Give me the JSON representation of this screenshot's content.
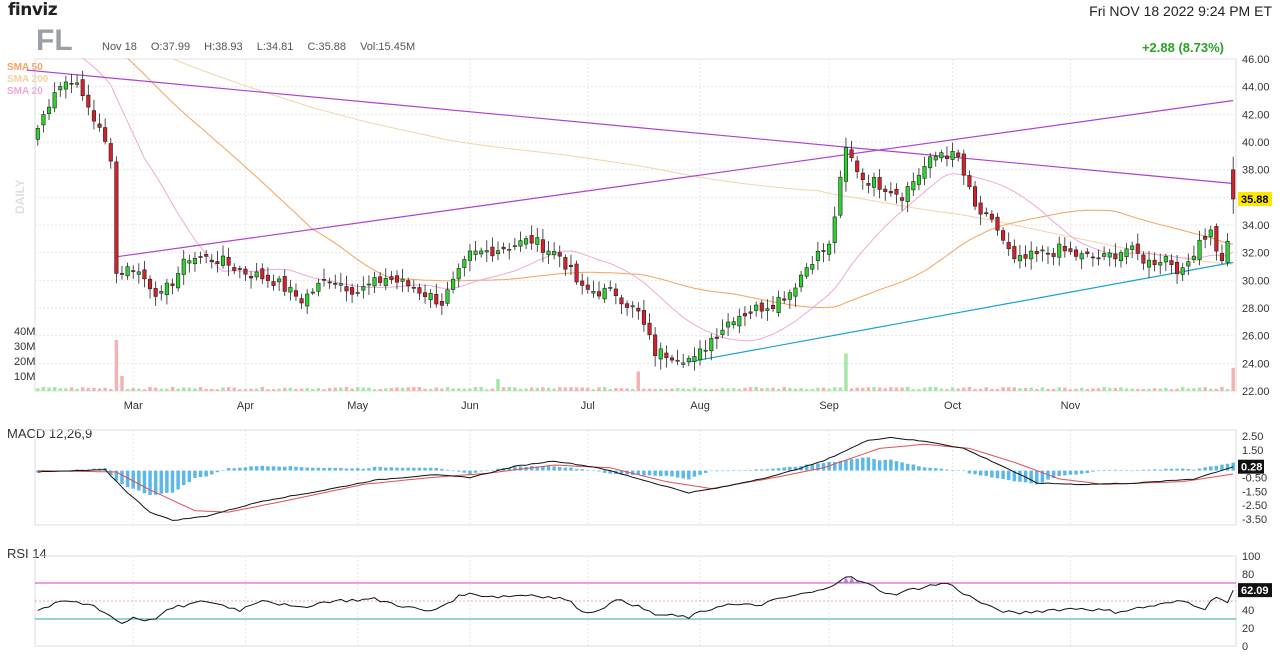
{
  "header": {
    "logo": "finviz",
    "datetime": "Fri NOV 18 2022 9:24 PM ET",
    "ticker": "FL",
    "date": "Nov 18",
    "open": "O:37.99",
    "high": "H:38.93",
    "low": "L:34.81",
    "close": "C:35.88",
    "volume": "Vol:15.45M",
    "change": "+2.88 (8.73%)"
  },
  "legend": {
    "sma50": {
      "label": "SMA 50",
      "color": "#f5a25d"
    },
    "sma200": {
      "label": "SMA 200",
      "color": "#f3d3a6"
    },
    "sma20": {
      "label": "SMA 20",
      "color": "#f0a8d8"
    }
  },
  "daily_label": "DAILY",
  "panels": {
    "macd": "MACD 12,26,9",
    "rsi": "RSI 14"
  },
  "colors": {
    "up": "#2dd32d",
    "down": "#d6202a",
    "trendline_purple": "#b040d0",
    "trendline_blue": "#1aa0d8",
    "macd_hist": "#5bb8e8",
    "macd_signal": "#e05050",
    "rsi_band": "#cc44cc",
    "rsi_low": "#2aa8a8",
    "price_tag": "#ffe800"
  },
  "chart_data": [
    {
      "type": "candlestick",
      "title": "FL",
      "x_labels": [
        "Mar",
        "Apr",
        "May",
        "Jun",
        "Jul",
        "Aug",
        "Sep",
        "Oct",
        "Nov"
      ],
      "y_ticks": [
        22,
        24,
        26,
        28,
        30,
        32,
        34,
        36,
        38,
        40,
        42,
        44,
        46
      ],
      "ylim": [
        22,
        46
      ],
      "last_price": "35.88",
      "volume_ticks": [
        "10M",
        "20M",
        "30M",
        "40M"
      ],
      "anchors": [
        {
          "i": 0,
          "c": 41.0
        },
        {
          "i": 3,
          "c": 43.8
        },
        {
          "i": 6,
          "c": 44.6
        },
        {
          "i": 9,
          "c": 42.6
        },
        {
          "i": 13,
          "c": 39.0
        },
        {
          "i": 14,
          "c": 30.5
        },
        {
          "i": 17,
          "c": 31.0
        },
        {
          "i": 22,
          "c": 28.8
        },
        {
          "i": 27,
          "c": 31.7
        },
        {
          "i": 32,
          "c": 31.5
        },
        {
          "i": 37,
          "c": 30.6
        },
        {
          "i": 42,
          "c": 30.0
        },
        {
          "i": 47,
          "c": 28.6
        },
        {
          "i": 52,
          "c": 30.2
        },
        {
          "i": 57,
          "c": 29.2
        },
        {
          "i": 62,
          "c": 30.2
        },
        {
          "i": 67,
          "c": 29.5
        },
        {
          "i": 72,
          "c": 28.4
        },
        {
          "i": 77,
          "c": 31.8
        },
        {
          "i": 82,
          "c": 32.3
        },
        {
          "i": 88,
          "c": 32.9
        },
        {
          "i": 93,
          "c": 31.8
        },
        {
          "i": 97,
          "c": 29.3
        },
        {
          "i": 103,
          "c": 29.1
        },
        {
          "i": 107,
          "c": 27.6
        },
        {
          "i": 110,
          "c": 24.8
        },
        {
          "i": 114,
          "c": 24.6
        },
        {
          "i": 117,
          "c": 24.2
        },
        {
          "i": 120,
          "c": 25.8
        },
        {
          "i": 124,
          "c": 27.4
        },
        {
          "i": 127,
          "c": 27.8
        },
        {
          "i": 131,
          "c": 28.4
        },
        {
          "i": 134,
          "c": 29.2
        },
        {
          "i": 138,
          "c": 31.6
        },
        {
          "i": 141,
          "c": 32.4
        },
        {
          "i": 144,
          "c": 39.4
        },
        {
          "i": 147,
          "c": 37.4
        },
        {
          "i": 151,
          "c": 36.8
        },
        {
          "i": 154,
          "c": 36.2
        },
        {
          "i": 158,
          "c": 38.2
        },
        {
          "i": 161,
          "c": 39.3
        },
        {
          "i": 164,
          "c": 38.8
        },
        {
          "i": 167,
          "c": 35.2
        },
        {
          "i": 171,
          "c": 33.7
        },
        {
          "i": 174,
          "c": 31.3
        },
        {
          "i": 178,
          "c": 31.8
        },
        {
          "i": 182,
          "c": 32.2
        },
        {
          "i": 186,
          "c": 31.7
        },
        {
          "i": 190,
          "c": 31.6
        },
        {
          "i": 194,
          "c": 32.3
        },
        {
          "i": 198,
          "c": 31.3
        },
        {
          "i": 201,
          "c": 31.7
        },
        {
          "i": 204,
          "c": 30.5
        },
        {
          "i": 207,
          "c": 33.0
        },
        {
          "i": 209,
          "c": 33.5
        },
        {
          "i": 211,
          "c": 31.2
        },
        {
          "i": 212,
          "c": 33.0
        },
        {
          "i": 213,
          "c": 35.88
        }
      ],
      "trendlines": [
        {
          "from": {
            "i": -2,
            "price": 45.2
          },
          "to": {
            "i": 213,
            "price": 37.0
          }
        },
        {
          "from": {
            "i": 14,
            "price": 31.7
          },
          "to": {
            "i": 213,
            "price": 43.0
          }
        },
        {
          "from": {
            "i": 116,
            "price": 24.1
          },
          "to": {
            "i": 213,
            "price": 31.3
          }
        }
      ]
    },
    {
      "type": "line",
      "title": "MACD 12,26,9",
      "y_ticks": [
        "2.50",
        "1.50",
        "0.50",
        "-0.50",
        "-1.50",
        "-2.50",
        "-3.50"
      ],
      "last_value": "0.28",
      "macd_anchors": [
        {
          "i": 0,
          "v": -0.1
        },
        {
          "i": 12,
          "v": 0.05
        },
        {
          "i": 16,
          "v": -1.6
        },
        {
          "i": 20,
          "v": -3.0
        },
        {
          "i": 24,
          "v": -3.6
        },
        {
          "i": 30,
          "v": -3.3
        },
        {
          "i": 40,
          "v": -2.2
        },
        {
          "i": 50,
          "v": -1.5
        },
        {
          "i": 60,
          "v": -0.7
        },
        {
          "i": 70,
          "v": -0.3
        },
        {
          "i": 77,
          "v": -0.5
        },
        {
          "i": 85,
          "v": 0.3
        },
        {
          "i": 92,
          "v": 0.7
        },
        {
          "i": 100,
          "v": 0.2
        },
        {
          "i": 108,
          "v": -0.7
        },
        {
          "i": 116,
          "v": -1.6
        },
        {
          "i": 122,
          "v": -1.2
        },
        {
          "i": 132,
          "v": -0.3
        },
        {
          "i": 140,
          "v": 0.7
        },
        {
          "i": 148,
          "v": 2.2
        },
        {
          "i": 152,
          "v": 2.4
        },
        {
          "i": 160,
          "v": 2.0
        },
        {
          "i": 165,
          "v": 1.6
        },
        {
          "i": 172,
          "v": 0.3
        },
        {
          "i": 178,
          "v": -0.9
        },
        {
          "i": 186,
          "v": -1.0
        },
        {
          "i": 196,
          "v": -0.9
        },
        {
          "i": 206,
          "v": -0.6
        },
        {
          "i": 213,
          "v": 0.28
        }
      ],
      "signal_anchors": [
        {
          "i": 0,
          "v": 0.0
        },
        {
          "i": 14,
          "v": -0.1
        },
        {
          "i": 20,
          "v": -1.4
        },
        {
          "i": 28,
          "v": -2.9
        },
        {
          "i": 34,
          "v": -3.0
        },
        {
          "i": 44,
          "v": -2.2
        },
        {
          "i": 58,
          "v": -1.0
        },
        {
          "i": 70,
          "v": -0.5
        },
        {
          "i": 80,
          "v": -0.2
        },
        {
          "i": 92,
          "v": 0.4
        },
        {
          "i": 102,
          "v": 0.2
        },
        {
          "i": 112,
          "v": -0.8
        },
        {
          "i": 120,
          "v": -1.3
        },
        {
          "i": 130,
          "v": -0.6
        },
        {
          "i": 140,
          "v": 0.2
        },
        {
          "i": 150,
          "v": 1.6
        },
        {
          "i": 158,
          "v": 1.9
        },
        {
          "i": 166,
          "v": 1.6
        },
        {
          "i": 174,
          "v": 0.6
        },
        {
          "i": 182,
          "v": -0.6
        },
        {
          "i": 190,
          "v": -1.0
        },
        {
          "i": 204,
          "v": -0.8
        },
        {
          "i": 213,
          "v": -0.25
        }
      ]
    },
    {
      "type": "line",
      "title": "RSI 14",
      "y_ticks": [
        "100",
        "80",
        "60",
        "40",
        "20",
        "0"
      ],
      "bands": [
        70,
        30
      ],
      "last_value": "62.09",
      "rsi_anchors": [
        {
          "i": 0,
          "v": 40
        },
        {
          "i": 5,
          "v": 50
        },
        {
          "i": 10,
          "v": 45
        },
        {
          "i": 13,
          "v": 33
        },
        {
          "i": 15,
          "v": 25
        },
        {
          "i": 17,
          "v": 32
        },
        {
          "i": 20,
          "v": 28
        },
        {
          "i": 24,
          "v": 42
        },
        {
          "i": 30,
          "v": 50
        },
        {
          "i": 36,
          "v": 40
        },
        {
          "i": 40,
          "v": 52
        },
        {
          "i": 46,
          "v": 42
        },
        {
          "i": 52,
          "v": 50
        },
        {
          "i": 60,
          "v": 52
        },
        {
          "i": 66,
          "v": 43
        },
        {
          "i": 70,
          "v": 38
        },
        {
          "i": 76,
          "v": 58
        },
        {
          "i": 82,
          "v": 55
        },
        {
          "i": 88,
          "v": 57
        },
        {
          "i": 94,
          "v": 52
        },
        {
          "i": 98,
          "v": 36
        },
        {
          "i": 104,
          "v": 52
        },
        {
          "i": 110,
          "v": 35
        },
        {
          "i": 116,
          "v": 32
        },
        {
          "i": 122,
          "v": 46
        },
        {
          "i": 128,
          "v": 45
        },
        {
          "i": 134,
          "v": 55
        },
        {
          "i": 140,
          "v": 62
        },
        {
          "i": 144,
          "v": 78
        },
        {
          "i": 148,
          "v": 68
        },
        {
          "i": 152,
          "v": 57
        },
        {
          "i": 158,
          "v": 66
        },
        {
          "i": 162,
          "v": 70
        },
        {
          "i": 166,
          "v": 55
        },
        {
          "i": 170,
          "v": 42
        },
        {
          "i": 174,
          "v": 36
        },
        {
          "i": 180,
          "v": 40
        },
        {
          "i": 186,
          "v": 42
        },
        {
          "i": 192,
          "v": 38
        },
        {
          "i": 198,
          "v": 44
        },
        {
          "i": 204,
          "v": 50
        },
        {
          "i": 208,
          "v": 42
        },
        {
          "i": 210,
          "v": 56
        },
        {
          "i": 212,
          "v": 48
        },
        {
          "i": 213,
          "v": 62
        }
      ]
    }
  ]
}
